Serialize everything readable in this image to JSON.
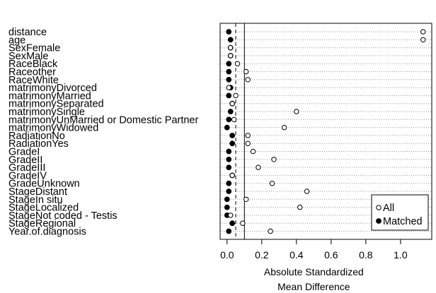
{
  "chart_data": {
    "type": "scatter",
    "style": "dotplot",
    "xlabel_lines": [
      "Absolute Standardized",
      "Mean Difference"
    ],
    "x_ticks": [
      "0.0",
      "0.2",
      "0.4",
      "0.6",
      "0.8",
      "1.0"
    ],
    "x_tick_values": [
      0,
      0.2,
      0.4,
      0.6,
      0.8,
      1.0
    ],
    "xlim": [
      -0.04,
      1.18
    ],
    "reference_lines": [
      0.05,
      0.1
    ],
    "grid": "horizontal dotted",
    "legend_position": "bottom-right",
    "categories": [
      "distance",
      "age",
      "SexFemale",
      "SexMale",
      "RaceBlack",
      "Raceother",
      "RaceWhite",
      "matrimonyDivorced",
      "matrimonyMarried",
      "matrimonySeparated",
      "matrimonySingle",
      "matrimonyUnMarried or Domestic Partner",
      "matrimonyWidowed",
      "RadiationNo",
      "RadiationYes",
      "GradeI",
      "GradeII",
      "GradeIII",
      "GradeIV",
      "GradeUnknown",
      "StageDistant",
      "StageIn situ",
      "StageLocalized",
      "StageNot coded - Testis",
      "StageRegional",
      "Year.of.diagnosis"
    ],
    "series": [
      {
        "name": "All",
        "marker": "open-circle",
        "values": [
          1.13,
          1.13,
          0.02,
          0.02,
          0.06,
          0.11,
          0.12,
          0.01,
          0.05,
          0.03,
          0.4,
          0.04,
          0.33,
          0.12,
          0.12,
          0.15,
          0.27,
          0.18,
          0.03,
          0.26,
          0.46,
          0.11,
          0.42,
          0.02,
          0.09,
          0.25
        ]
      },
      {
        "name": "Matched",
        "marker": "filled-circle",
        "values": [
          0.01,
          0.02,
          0.02,
          0.02,
          0.01,
          0.01,
          0.01,
          0.02,
          0.01,
          0.03,
          0.02,
          0.01,
          0.0,
          0.03,
          0.03,
          0.01,
          0.01,
          0.01,
          0.03,
          0.01,
          0.01,
          0.0,
          0.0,
          0.0,
          0.03,
          0.01
        ]
      }
    ]
  }
}
